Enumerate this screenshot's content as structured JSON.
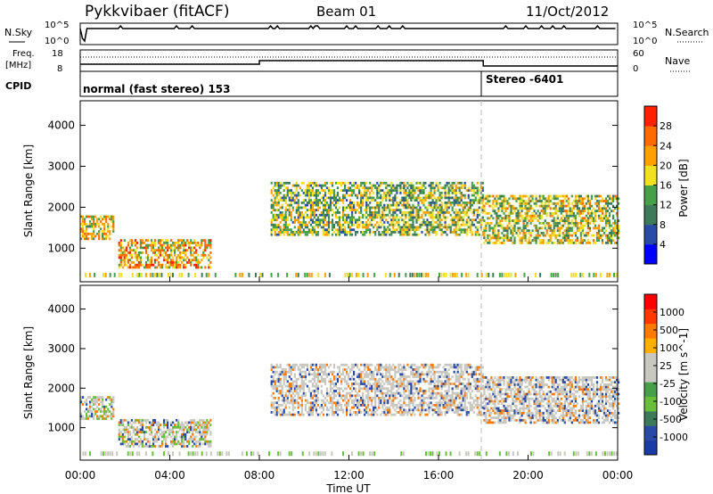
{
  "header": {
    "station": "Pykkvibaer (fitACF)",
    "beam": "Beam 01",
    "date": "11/Oct/2012"
  },
  "nsky_panel": {
    "left_label": "N.Sky",
    "right_label": "N.Search",
    "tick_top": "10^5",
    "tick_bottom": "10^0"
  },
  "freq_panel": {
    "left_label_1": "Freq.",
    "left_label_2": "[MHz]",
    "left_tick_top": "18",
    "left_tick_bottom": "8",
    "right_label": "Nave",
    "right_tick_top": "60",
    "right_tick_bottom": "0"
  },
  "cpid_panel": {
    "label": "CPID",
    "mode_1": "normal (fast stereo) 153",
    "mode_2": "Stereo -6401"
  },
  "x_axis": {
    "label": "Time UT",
    "ticks": [
      "00:00",
      "04:00",
      "08:00",
      "12:00",
      "16:00",
      "20:00",
      "00:00"
    ]
  },
  "colors": {
    "power_scale": [
      "#0000ff",
      "#2a4aa8",
      "#3d7a5a",
      "#46a048",
      "#f0e020",
      "#ffa000",
      "#ff6a00",
      "#ff2000"
    ],
    "velocity_scale": [
      "#ff0000",
      "#ff3a00",
      "#ff7a00",
      "#ffb000",
      "#c8c8c0",
      "#c8c8c0",
      "#46a048",
      "#6abf3a",
      "#3d7a5a",
      "#2a4aa8",
      "#1a3aa8"
    ]
  },
  "chart_data": [
    {
      "type": "heatmap",
      "panel": "power",
      "ylabel": "Slant Range [km]",
      "xlabel": "Time UT",
      "xlim": [
        0,
        24
      ],
      "ylim": [
        180,
        4600
      ],
      "yticks": [
        "1000",
        "2000",
        "3000",
        "4000"
      ],
      "colorbar_label": "Power [dB]",
      "colorbar_ticks": [
        "4",
        "8",
        "12",
        "16",
        "20",
        "24",
        "28"
      ],
      "colorbar_range": [
        0,
        30
      ],
      "description_bands": [
        {
          "t_start": 0,
          "t_end": 1.5,
          "range_start": 1200,
          "range_end": 1800,
          "power": 18
        },
        {
          "t_start": 1.7,
          "t_end": 5.8,
          "range_start": 500,
          "range_end": 1200,
          "power": 20
        },
        {
          "t_start": 8.5,
          "t_end": 18,
          "range_start": 1300,
          "range_end": 2600,
          "power": 14
        },
        {
          "t_start": 18,
          "t_end": 24,
          "range_start": 1100,
          "range_end": 2300,
          "power": 16
        }
      ]
    },
    {
      "type": "heatmap",
      "panel": "velocity",
      "ylabel": "Slant Range [km]",
      "xlabel": "Time UT",
      "xlim": [
        0,
        24
      ],
      "ylim": [
        180,
        4600
      ],
      "yticks": [
        "1000",
        "2000",
        "3000",
        "4000"
      ],
      "colorbar_label": "Velocity [m s^-1]",
      "colorbar_ticks": [
        "1000",
        "500",
        "100",
        "25",
        "-25",
        "-100",
        "-500",
        "-1000"
      ],
      "colorbar_range": [
        -1000,
        1000
      ]
    }
  ]
}
